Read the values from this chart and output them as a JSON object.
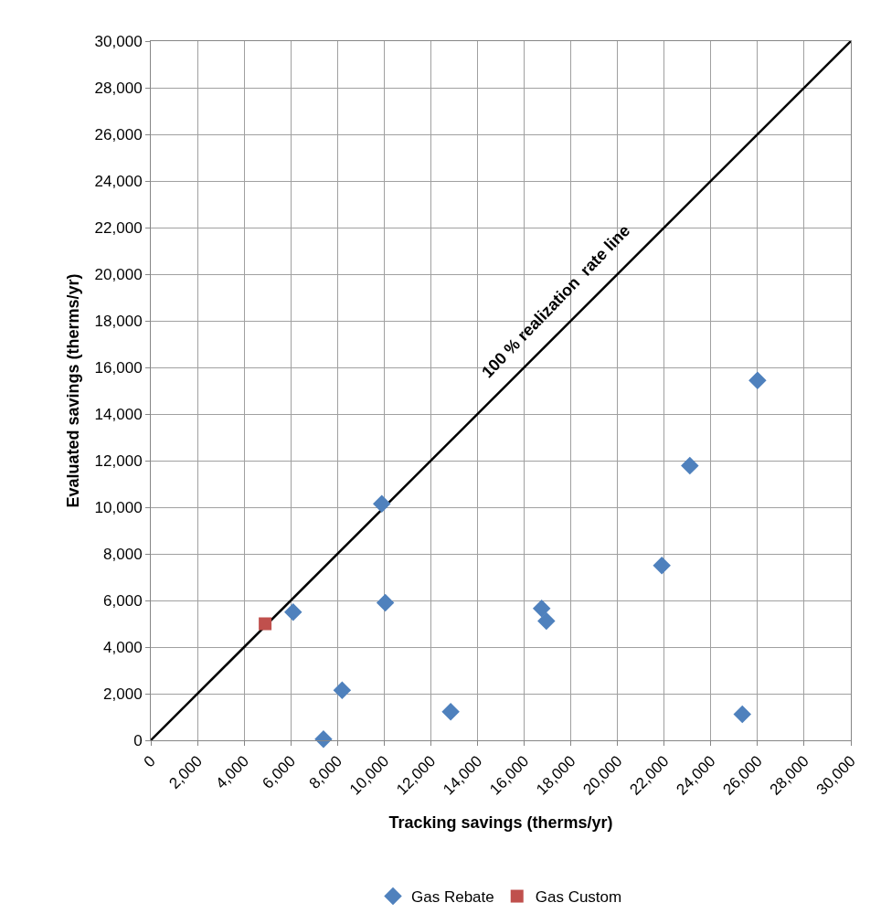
{
  "chart_data": {
    "type": "scatter",
    "xlabel": "Tracking savings (therms/yr)",
    "ylabel": "Evaluated savings (therms/yr)",
    "xlim": [
      0,
      30000
    ],
    "ylim": [
      0,
      30000
    ],
    "xticks": [
      {
        "value": 0,
        "label": "0"
      },
      {
        "value": 2000,
        "label": "2,000"
      },
      {
        "value": 4000,
        "label": "4,000"
      },
      {
        "value": 6000,
        "label": "6,000"
      },
      {
        "value": 8000,
        "label": "8,000"
      },
      {
        "value": 10000,
        "label": "10,000"
      },
      {
        "value": 12000,
        "label": "12,000"
      },
      {
        "value": 14000,
        "label": "14,000"
      },
      {
        "value": 16000,
        "label": "16,000"
      },
      {
        "value": 18000,
        "label": "18,000"
      },
      {
        "value": 20000,
        "label": "20,000"
      },
      {
        "value": 22000,
        "label": "22,000"
      },
      {
        "value": 24000,
        "label": "24,000"
      },
      {
        "value": 26000,
        "label": "26,000"
      },
      {
        "value": 28000,
        "label": "28,000"
      },
      {
        "value": 30000,
        "label": "30,000"
      }
    ],
    "yticks": [
      {
        "value": 0,
        "label": "0"
      },
      {
        "value": 2000,
        "label": "2,000"
      },
      {
        "value": 4000,
        "label": "4,000"
      },
      {
        "value": 6000,
        "label": "6,000"
      },
      {
        "value": 8000,
        "label": "8,000"
      },
      {
        "value": 10000,
        "label": "10,000"
      },
      {
        "value": 12000,
        "label": "12,000"
      },
      {
        "value": 14000,
        "label": "14,000"
      },
      {
        "value": 16000,
        "label": "16,000"
      },
      {
        "value": 18000,
        "label": "18,000"
      },
      {
        "value": 20000,
        "label": "20,000"
      },
      {
        "value": 22000,
        "label": "22,000"
      },
      {
        "value": 24000,
        "label": "24,000"
      },
      {
        "value": 26000,
        "label": "26,000"
      },
      {
        "value": 28000,
        "label": "28,000"
      },
      {
        "value": 30000,
        "label": "30,000"
      }
    ],
    "grid": true,
    "legend": "bottom",
    "series": [
      {
        "type": "line",
        "color": "#000000",
        "marker": "none",
        "line_style": "solid",
        "x": [
          0,
          30000
        ],
        "values": [
          0,
          30000
        ]
      },
      {
        "name": "Gas Rebate",
        "color": "#4f81bd",
        "marker": "diamond",
        "x": [
          6100,
          7400,
          8200,
          9900,
          10050,
          12850,
          16750,
          16950,
          21900,
          23100,
          25350,
          26000
        ],
        "values": [
          5500,
          50,
          2150,
          10150,
          5900,
          1230,
          5660,
          5120,
          7500,
          11780,
          1120,
          15440
        ]
      },
      {
        "name": "Gas Custom",
        "color": "#c0504d",
        "marker": "square",
        "x": [
          4900
        ],
        "values": [
          5000
        ]
      }
    ],
    "annotations": [
      "100 % realization  rate line"
    ]
  }
}
